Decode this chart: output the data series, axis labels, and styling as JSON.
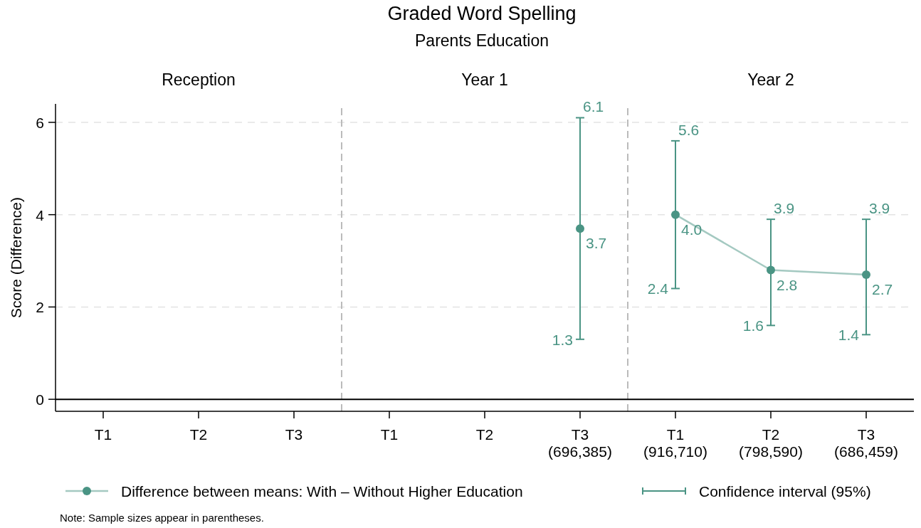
{
  "chart_data": {
    "type": "line",
    "title": "Graded Word Spelling",
    "subtitle": "Parents Education",
    "ylabel": "Score (Difference)",
    "categories": [
      "T1",
      "T2",
      "T3",
      "T1",
      "T2",
      "T3\n(696,385)",
      "T1\n(916,710)",
      "T2\n(798,590)",
      "T3\n(686,459)"
    ],
    "series": [
      {
        "type": "scatter",
        "color": "#4a9484",
        "values": [
          null,
          null,
          null,
          null,
          null,
          3.7,
          null,
          null,
          null
        ],
        "errors": [
          null,
          null,
          null,
          null,
          null,
          [
            1.3,
            6.1
          ],
          null,
          null,
          null
        ],
        "value_labels": [
          null,
          null,
          null,
          null,
          null,
          "3.7",
          null,
          null,
          null
        ]
      },
      {
        "name": "Difference between means: With – Without Higher Education",
        "color": "#4a9484",
        "values": [
          null,
          null,
          null,
          null,
          null,
          null,
          4.0,
          2.8,
          2.7
        ],
        "errors": [
          null,
          null,
          null,
          null,
          null,
          null,
          [
            2.4,
            5.6
          ],
          [
            1.6,
            3.9
          ],
          [
            1.4,
            3.9
          ]
        ],
        "value_labels": [
          null,
          null,
          null,
          null,
          null,
          null,
          "4.0",
          "2.8",
          "2.7"
        ]
      }
    ],
    "ylim": [
      -0.26,
      6.4
    ],
    "yticks": [
      0,
      2,
      4,
      6
    ],
    "grid": "y",
    "marker": "circle",
    "line_style": "solid",
    "legend": "bottom",
    "ref_lines": [
      {
        "axis": "y",
        "value": 0,
        "color": "#000000"
      }
    ],
    "annotations": [
      "Reception",
      "Year 1",
      "Year 2",
      "Confidence interval (95%)",
      "Note: Sample sizes appear in parentheses.",
      {
        "text": "6.1",
        "x": "T3\n(696,385)",
        "y": 6.1
      },
      {
        "text": "1.3",
        "x": "T3\n(696,385)",
        "y": 1.3
      },
      {
        "text": "5.6",
        "x": "T1\n(916,710)",
        "y": 5.6
      },
      {
        "text": "2.4",
        "x": "T1\n(916,710)",
        "y": 2.4
      },
      {
        "text": "3.9",
        "x": "T2\n(798,590)",
        "y": 3.9
      },
      {
        "text": "1.6",
        "x": "T2\n(798,590)",
        "y": 1.6
      },
      {
        "text": "3.9",
        "x": "T3\n(686,459)",
        "y": 3.9
      },
      {
        "text": "1.4",
        "x": "T3\n(686,459)",
        "y": 1.4
      }
    ]
  }
}
